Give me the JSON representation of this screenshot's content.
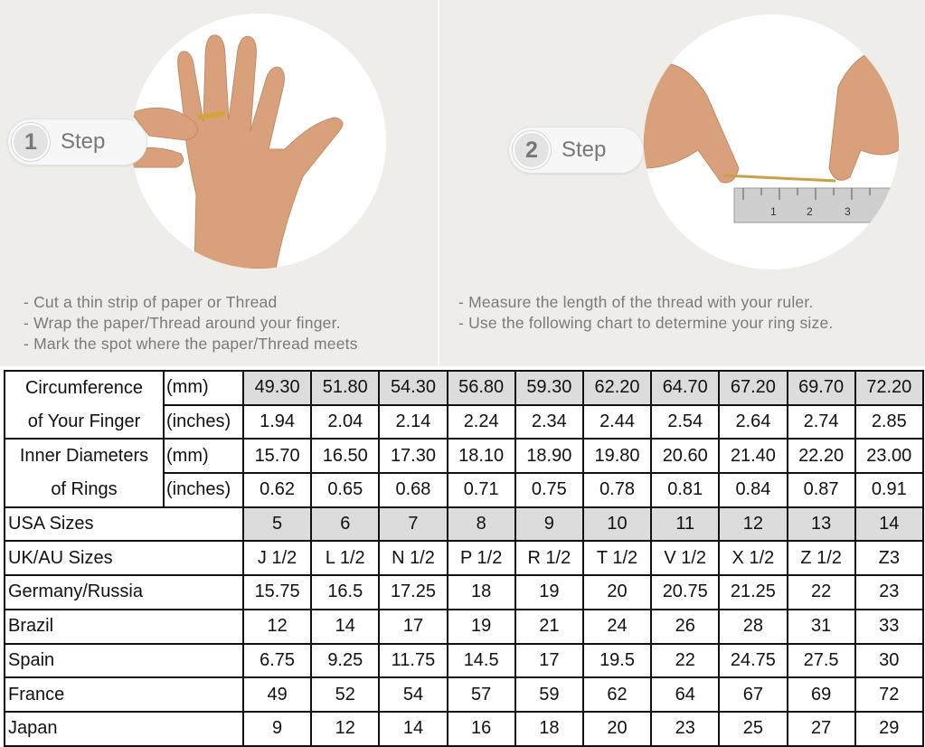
{
  "steps": [
    {
      "number": "1",
      "label": "Step",
      "notes": [
        "- Cut a thin strip of paper or Thread",
        "- Wrap the paper/Thread around your finger.",
        "- Mark the spot where the paper/Thread meets"
      ]
    },
    {
      "number": "2",
      "label": "Step",
      "notes": [
        "- Measure the length of the thread with your ruler.",
        "- Use the following chart to determine your ring size."
      ]
    }
  ],
  "ruler_marks": [
    "1",
    "2",
    "3"
  ],
  "table": {
    "circumference": {
      "label_line1": "Circumference",
      "label_line2": "of Your Finger",
      "mm_unit": "(mm)",
      "mm": [
        "49.30",
        "51.80",
        "54.30",
        "56.80",
        "59.30",
        "62.20",
        "64.70",
        "67.20",
        "69.70",
        "72.20"
      ],
      "in_unit": "(inches)",
      "in": [
        "1.94",
        "2.04",
        "2.14",
        "2.24",
        "2.34",
        "2.44",
        "2.54",
        "2.64",
        "2.74",
        "2.85"
      ]
    },
    "inner_diameter": {
      "label_line1": "Inner Diameters",
      "label_line2": "of Rings",
      "mm_unit": "(mm)",
      "mm": [
        "15.70",
        "16.50",
        "17.30",
        "18.10",
        "18.90",
        "19.80",
        "20.60",
        "21.40",
        "22.20",
        "23.00"
      ],
      "in_unit": "(inches)",
      "in": [
        "0.62",
        "0.65",
        "0.68",
        "0.71",
        "0.75",
        "0.78",
        "0.81",
        "0.84",
        "0.87",
        "0.91"
      ]
    },
    "rows": [
      {
        "label": "USA Sizes",
        "values": [
          "5",
          "6",
          "7",
          "8",
          "9",
          "10",
          "11",
          "12",
          "13",
          "14"
        ]
      },
      {
        "label": "UK/AU Sizes",
        "values": [
          "J 1/2",
          "L 1/2",
          "N 1/2",
          "P 1/2",
          "R 1/2",
          "T 1/2",
          "V 1/2",
          "X 1/2",
          "Z 1/2",
          "Z3"
        ]
      },
      {
        "label": "Germany/Russia",
        "values": [
          "15.75",
          "16.5",
          "17.25",
          "18",
          "19",
          "20",
          "20.75",
          "21.25",
          "22",
          "23"
        ]
      },
      {
        "label": "Brazil",
        "values": [
          "12",
          "14",
          "17",
          "19",
          "21",
          "24",
          "26",
          "28",
          "31",
          "33"
        ]
      },
      {
        "label": "Spain",
        "values": [
          "6.75",
          "9.25",
          "11.75",
          "14.5",
          "17",
          "19.5",
          "22",
          "24.75",
          "27.5",
          "30"
        ]
      },
      {
        "label": "France",
        "values": [
          "49",
          "52",
          "54",
          "57",
          "59",
          "62",
          "64",
          "67",
          "69",
          "72"
        ]
      },
      {
        "label": "Japan",
        "values": [
          "9",
          "12",
          "14",
          "16",
          "18",
          "20",
          "23",
          "25",
          "27",
          "29"
        ]
      }
    ]
  },
  "colors": {
    "background": "#efedea",
    "highlight_cell": "#dcdcdc",
    "note_text": "#7a7a7a"
  }
}
